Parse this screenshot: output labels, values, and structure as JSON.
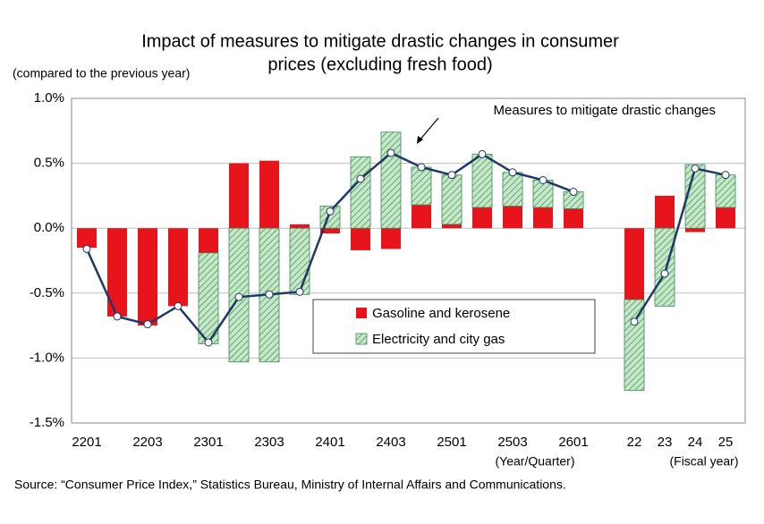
{
  "chart_data": {
    "type": "bar",
    "title": [
      "Impact of measures to mitigate drastic changes in consumer",
      "prices (excluding fresh food)"
    ],
    "y_label": "(compared to the previous year)",
    "annotation": "Measures to mitigate drastic changes",
    "x_notes": [
      "(Year/Quarter)",
      "(Fiscal year)"
    ],
    "source": "Source: “Consumer Price Index,” Statistics Bureau, Ministry of Internal Affairs and Communications.",
    "categories": [
      "2201",
      null,
      "2203",
      null,
      "2301",
      null,
      "2303",
      null,
      "2401",
      null,
      "2403",
      null,
      "2501",
      null,
      "2503",
      null,
      "2601",
      null,
      "22",
      "23",
      "24",
      "25"
    ],
    "series": [
      {
        "name": "Gasoline and kerosene",
        "color": "#e8141b",
        "values": [
          -0.15,
          -0.68,
          -0.75,
          -0.6,
          -0.19,
          0.5,
          0.52,
          0.03,
          -0.04,
          -0.17,
          -0.16,
          0.18,
          0.03,
          0.16,
          0.17,
          0.16,
          0.15,
          null,
          -0.55,
          0.25,
          -0.03,
          0.16
        ]
      },
      {
        "name": "Electricity and city gas",
        "color": "#c6e8c6",
        "hatch": "#3a8a5a",
        "values": [
          0,
          0,
          0,
          0,
          -0.7,
          -1.03,
          -1.03,
          -0.51,
          0.17,
          0.55,
          0.74,
          0.29,
          0.38,
          0.41,
          0.26,
          0.21,
          0.13,
          null,
          -0.7,
          -0.6,
          0.49,
          0.25
        ]
      },
      {
        "name": "Measures to mitigate drastic changes",
        "type": "line",
        "color": "#1f3864",
        "values": [
          -0.16,
          -0.68,
          -0.74,
          -0.6,
          -0.88,
          -0.53,
          -0.51,
          -0.49,
          0.13,
          0.38,
          0.58,
          0.47,
          0.41,
          0.57,
          0.43,
          0.37,
          0.28,
          null,
          -0.72,
          -0.35,
          0.46,
          0.41
        ]
      }
    ],
    "ylim": [
      -1.5,
      1.0
    ],
    "yticks": [
      {
        "value": -1.5,
        "label": "-1.5%"
      },
      {
        "value": -1.0,
        "label": "-1.0%"
      },
      {
        "value": -0.5,
        "label": "-0.5%"
      },
      {
        "value": 0,
        "label": "0.0%"
      },
      {
        "value": 0.5,
        "label": "0.5%"
      },
      {
        "value": 1.0,
        "label": "1.0%"
      }
    ],
    "grid": true
  }
}
